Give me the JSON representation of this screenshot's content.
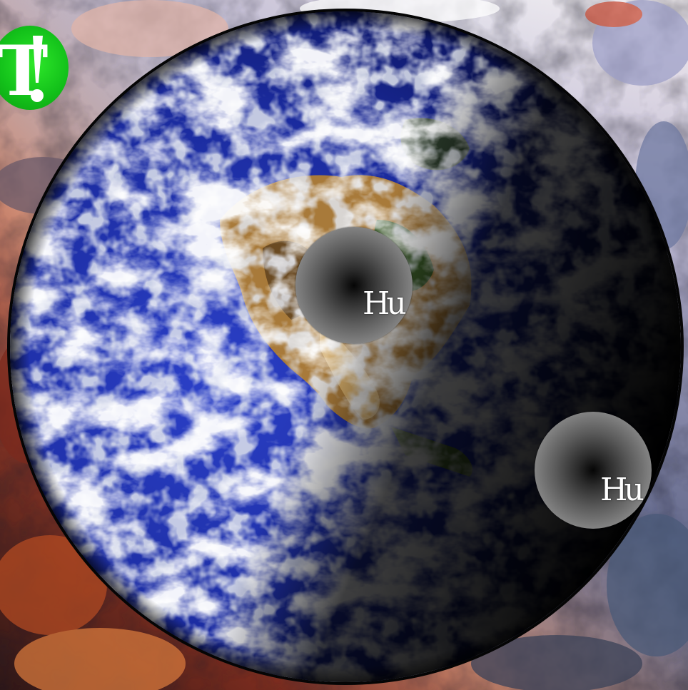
{
  "logo": {
    "letter": "T",
    "accent_color": "#13c11a"
  },
  "tokens": [
    {
      "label": "Hu"
    },
    {
      "label": "Hu"
    }
  ],
  "colors": {
    "ocean": "#1f2fae",
    "ocean_dark": "#0a1260",
    "land": "#b88a4a",
    "space": "#000000"
  }
}
